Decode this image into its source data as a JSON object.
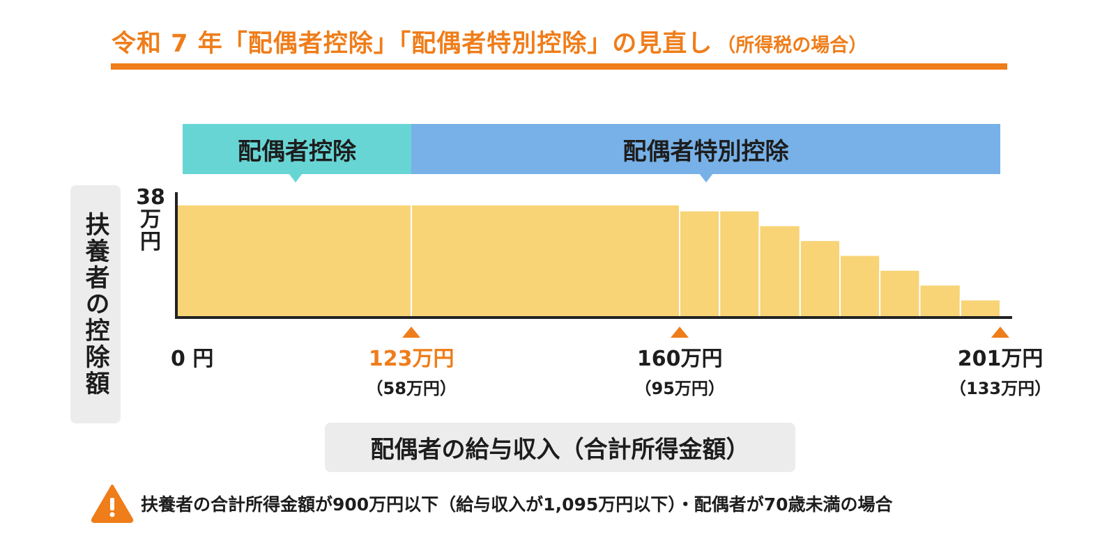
{
  "title": {
    "main": "令和 7 年「配偶者控除」「配偶者特別控除」の見直し",
    "sub": "（所得税の場合）"
  },
  "bands": {
    "spouse_deduction": "配偶者控除",
    "special_deduction": "配偶者特別控除"
  },
  "y_axis_label": "扶養者の控除額",
  "x_axis_label": "配偶者の給与収入（合計所得金額）",
  "note": "扶養者の合計所得金額が900万円以下（給与収入が1,095万円以下）・配偶者が70歳未満の場合",
  "colors": {
    "accent": "#ef7d1a",
    "bar": "#f8d477",
    "band_spouse": "#68d5d5",
    "band_special": "#77b1e7",
    "axis": "#222222",
    "box_gray": "#ececec"
  },
  "chart_data": {
    "type": "bar",
    "title": "令和 7 年「配偶者控除」「配偶者特別控除」の見直し（所得税の場合）",
    "xlabel": "配偶者の給与収入（合計所得金額）",
    "ylabel": "扶養者の控除額",
    "ytick": {
      "value": 38,
      "label": [
        "38",
        "万",
        "円"
      ]
    },
    "ylim": [
      0,
      38
    ],
    "xlim": [
      0,
      201
    ],
    "x_unit": "万円",
    "y_unit": "万円",
    "segments": [
      {
        "from": 0,
        "to": 123,
        "value": 38
      },
      {
        "from": 123,
        "to": 160,
        "value": 38
      },
      {
        "from": 160,
        "to": 165.1,
        "value": 36
      },
      {
        "from": 165.1,
        "to": 170.2,
        "value": 36
      },
      {
        "from": 170.2,
        "to": 175.4,
        "value": 31
      },
      {
        "from": 175.4,
        "to": 180.5,
        "value": 26
      },
      {
        "from": 180.5,
        "to": 185.6,
        "value": 21
      },
      {
        "from": 185.6,
        "to": 190.7,
        "value": 16
      },
      {
        "from": 190.7,
        "to": 195.9,
        "value": 11
      },
      {
        "from": 195.9,
        "to": 201,
        "value": 6
      }
    ],
    "xticks": [
      {
        "value": 0,
        "label": "0 円",
        "sub": "",
        "marker": false,
        "highlight": false
      },
      {
        "value": 123,
        "label": "123万円",
        "sub": "（58万円）",
        "marker": true,
        "highlight": true
      },
      {
        "value": 160,
        "label": "160万円",
        "sub": "（95万円）",
        "marker": true,
        "highlight": false
      },
      {
        "value": 201,
        "label": "201万円",
        "sub": "（133万円）",
        "marker": true,
        "highlight": false
      }
    ],
    "legend": "none",
    "grid": false
  }
}
